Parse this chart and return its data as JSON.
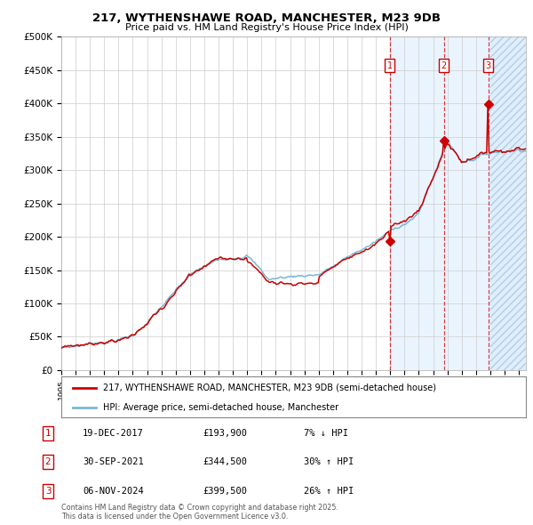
{
  "title1": "217, WYTHENSHAWE ROAD, MANCHESTER, M23 9DB",
  "title2": "Price paid vs. HM Land Registry's House Price Index (HPI)",
  "ylim": [
    0,
    500000
  ],
  "yticks": [
    0,
    50000,
    100000,
    150000,
    200000,
    250000,
    300000,
    350000,
    400000,
    450000,
    500000
  ],
  "ytick_labels": [
    "£0",
    "£50K",
    "£100K",
    "£150K",
    "£200K",
    "£250K",
    "£300K",
    "£350K",
    "£400K",
    "£450K",
    "£500K"
  ],
  "xlim_start": 1995.0,
  "xlim_end": 2027.5,
  "sale1_date": 2017.96,
  "sale1_price": 193900,
  "sale2_date": 2021.75,
  "sale2_price": 344500,
  "sale3_date": 2024.85,
  "sale3_price": 399500,
  "sale1_text": "19-DEC-2017",
  "sale1_amount": "£193,900",
  "sale1_change": "7% ↓ HPI",
  "sale2_text": "30-SEP-2021",
  "sale2_amount": "£344,500",
  "sale2_change": "30% ↑ HPI",
  "sale3_text": "06-NOV-2024",
  "sale3_amount": "£399,500",
  "sale3_change": "26% ↑ HPI",
  "line_red": "#cc0000",
  "line_blue": "#7ab8d4",
  "shade_color": "#ddeeff",
  "grid_color": "#cccccc",
  "legend1": "217, WYTHENSHAWE ROAD, MANCHESTER, M23 9DB (semi-detached house)",
  "legend2": "HPI: Average price, semi-detached house, Manchester",
  "footer": "Contains HM Land Registry data © Crown copyright and database right 2025.\nThis data is licensed under the Open Government Licence v3.0."
}
